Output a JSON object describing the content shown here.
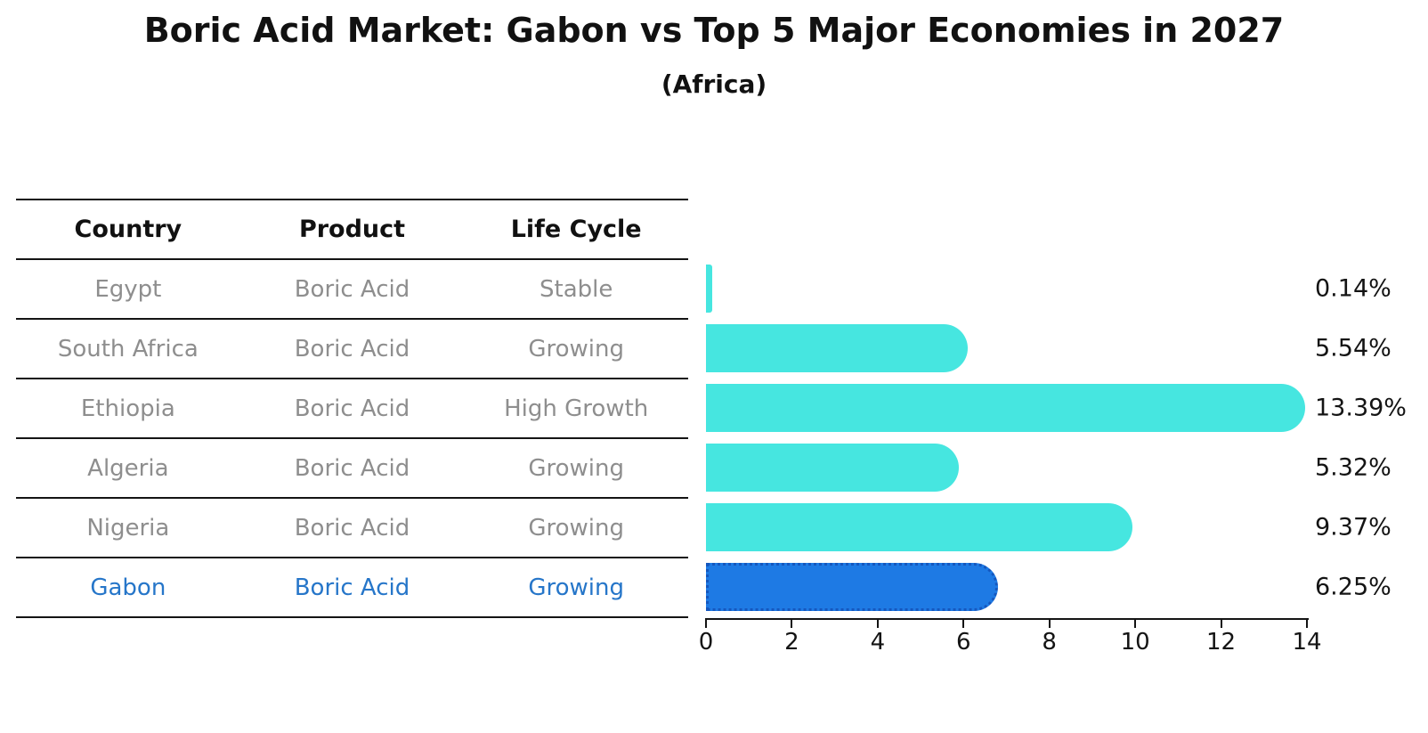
{
  "title": "Boric Acid Market: Gabon vs Top 5 Major Economies in 2027",
  "subtitle": "(Africa)",
  "table": {
    "headers": [
      "Country",
      "Product",
      "Life Cycle"
    ],
    "rows": [
      {
        "country": "Egypt",
        "product": "Boric Acid",
        "life_cycle": "Stable",
        "highlighted": false
      },
      {
        "country": "South Africa",
        "product": "Boric Acid",
        "life_cycle": "Growing",
        "highlighted": false
      },
      {
        "country": "Ethiopia",
        "product": "Boric Acid",
        "life_cycle": "High Growth",
        "highlighted": false
      },
      {
        "country": "Algeria",
        "product": "Boric Acid",
        "life_cycle": "Growing",
        "highlighted": false
      },
      {
        "country": "Nigeria",
        "product": "Boric Acid",
        "life_cycle": "Growing",
        "highlighted": false
      },
      {
        "country": "Gabon",
        "product": "Boric Acid",
        "life_cycle": "Growing",
        "highlighted": true
      }
    ]
  },
  "chart_data": {
    "type": "bar",
    "orientation": "horizontal",
    "categories": [
      "Egypt",
      "South Africa",
      "Ethiopia",
      "Algeria",
      "Nigeria",
      "Gabon"
    ],
    "values": [
      0.14,
      5.54,
      13.39,
      5.32,
      9.37,
      6.25
    ],
    "value_labels": [
      "0.14%",
      "5.54%",
      "13.39%",
      "5.32%",
      "9.37%",
      "6.25%"
    ],
    "highlight_category": "Gabon",
    "xlim": [
      0,
      14
    ],
    "x_ticks": [
      "0",
      "2",
      "4",
      "6",
      "8",
      "10",
      "12",
      "14"
    ],
    "grid": false,
    "legend": false
  },
  "colors": {
    "bar": "#46e6e0",
    "highlight_bar": "#1e7ae4",
    "highlight_border": "#1557be",
    "highlight_text": "#2676c9",
    "row_text": "#8e8e8e",
    "header_text": "#111111",
    "axis": "#141414"
  }
}
